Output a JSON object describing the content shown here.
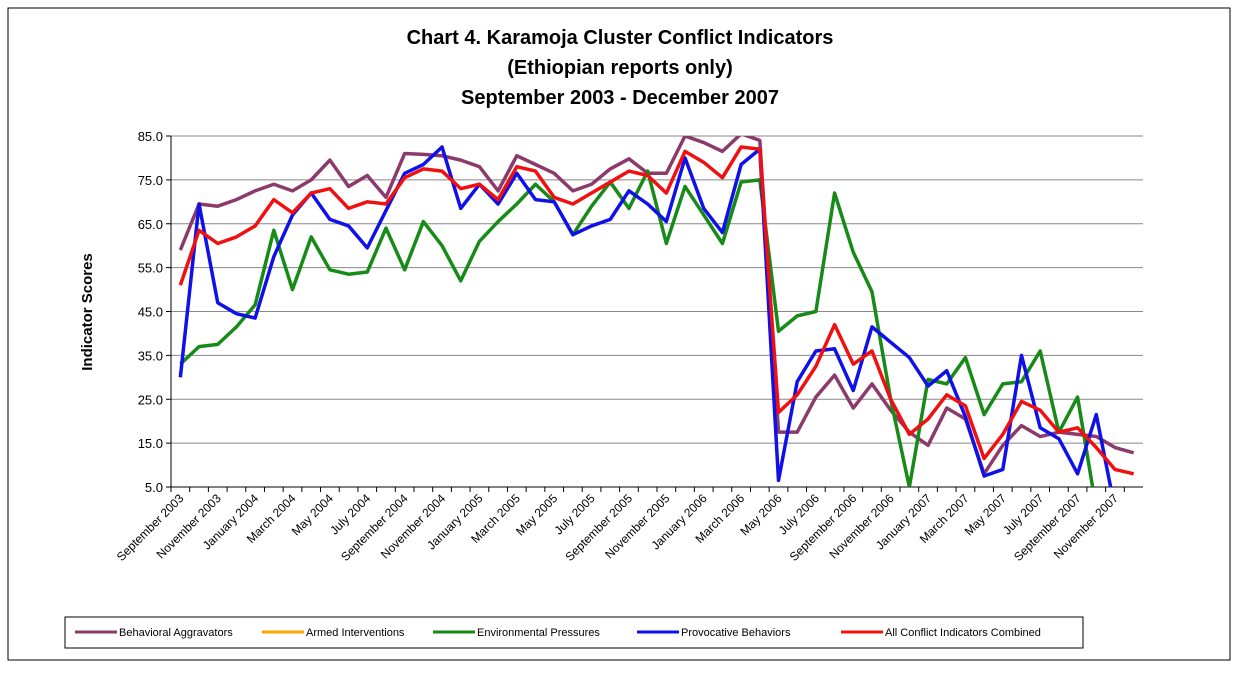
{
  "chart_data": {
    "type": "line",
    "title": [
      "Chart 4. Karamoja Cluster Conflict Indicators",
      "(Ethiopian reports only)",
      "September 2003 - December 2007"
    ],
    "y_label": "Indicator Scores",
    "categories": [
      "September 2003",
      null,
      "November 2003",
      null,
      "January 2004",
      null,
      "March 2004",
      null,
      "May 2004",
      null,
      "July 2004",
      null,
      "September 2004",
      null,
      "November 2004",
      null,
      "January 2005",
      null,
      "March 2005",
      null,
      "May 2005",
      null,
      "July 2005",
      null,
      "September 2005",
      null,
      "November 2005",
      null,
      "January 2006",
      null,
      "March 2006",
      null,
      "May 2006",
      null,
      "July 2006",
      null,
      "September 2006",
      null,
      "November 2006",
      null,
      "January 2007",
      null,
      "March 2007",
      null,
      "May 2007",
      null,
      "July 2007",
      null,
      "September 2007",
      null,
      "November 2007",
      null
    ],
    "ylim": [
      5,
      85
    ],
    "yticks": [
      {
        "value": 5,
        "label": "5.0"
      },
      {
        "value": 15,
        "label": "15.0"
      },
      {
        "value": 25,
        "label": "25.0"
      },
      {
        "value": 35,
        "label": "35.0"
      },
      {
        "value": 45,
        "label": "45.0"
      },
      {
        "value": 55,
        "label": "55.0"
      },
      {
        "value": 65,
        "label": "65.0"
      },
      {
        "value": 75,
        "label": "75.0"
      },
      {
        "value": 85,
        "label": "85.0"
      }
    ],
    "grid": true,
    "legend": "bottom",
    "series": [
      {
        "name": "Behavioral Aggravators",
        "color": "#8b3a6b",
        "values": [
          59,
          69.5,
          69,
          70.5,
          72.5,
          74,
          72.5,
          75,
          79.5,
          73.5,
          76,
          71,
          81,
          80.8,
          80.5,
          79.5,
          78,
          72.5,
          80.5,
          78.5,
          76.5,
          72.5,
          74,
          77.5,
          79.8,
          76.5,
          76.5,
          85,
          83.5,
          81.5,
          85.5,
          84,
          17.5,
          17.5,
          25.5,
          30.5,
          23,
          28.5,
          22.5,
          17.5,
          14.5,
          23,
          20.5,
          8,
          14.5,
          19,
          16.5,
          17.5,
          17,
          16.5,
          14,
          12.8
        ]
      },
      {
        "name": "Armed Interventions",
        "color": "#ffa500",
        "values": [
          0,
          0,
          0,
          0,
          0,
          0,
          0,
          0,
          0,
          0,
          0,
          0,
          0,
          0,
          0,
          0,
          0,
          0,
          0,
          0,
          0,
          0,
          0,
          0,
          0,
          0,
          0,
          0,
          0,
          0,
          0,
          0,
          0,
          0,
          0,
          0,
          0,
          0,
          0,
          0,
          0,
          0,
          0,
          0,
          0,
          0,
          0,
          0,
          0,
          0,
          0,
          0
        ]
      },
      {
        "name": "Environmental Pressures",
        "color": "#178a17",
        "values": [
          33,
          37,
          37.5,
          41.5,
          46.5,
          63.5,
          50,
          62,
          54.5,
          53.5,
          54,
          64,
          54.5,
          65.5,
          60,
          52,
          61,
          65.5,
          69.5,
          74,
          70,
          62.5,
          69,
          74.5,
          68.5,
          77,
          60.5,
          73.5,
          67,
          60.5,
          74.5,
          75,
          40.5,
          44,
          45,
          72,
          58.5,
          49.5,
          25,
          5,
          29.5,
          28.5,
          34.5,
          21.5,
          28.5,
          29,
          36,
          17.5,
          25.5,
          0,
          4,
          3
        ]
      },
      {
        "name": "Provocative Behaviors",
        "color": "#1010e8",
        "values": [
          30,
          69.5,
          47,
          44.5,
          43.5,
          57.5,
          67,
          72,
          66,
          64.5,
          59.5,
          68,
          76.5,
          78.5,
          82.5,
          68.5,
          74,
          69.5,
          76.5,
          70.5,
          70,
          62.5,
          64.5,
          66,
          72.5,
          69.5,
          65.5,
          80,
          68.5,
          63,
          78.5,
          82,
          6.5,
          29,
          36,
          36.5,
          27,
          41.5,
          38,
          34.5,
          28,
          31.5,
          21,
          7.5,
          9,
          35,
          18.5,
          16,
          8,
          21.5,
          0,
          0
        ]
      },
      {
        "name": "All Conflict Indicators Combined",
        "color": "#f01010",
        "values": [
          51,
          63.5,
          60.5,
          62,
          64.5,
          70.5,
          67.5,
          72,
          73,
          68.5,
          70,
          69.5,
          75.5,
          77.5,
          77,
          73,
          74,
          70.5,
          78,
          77,
          71,
          69.5,
          72,
          74.5,
          77,
          76,
          72,
          81.5,
          79,
          75.5,
          82.5,
          82,
          22,
          26,
          32.5,
          42,
          33,
          36,
          25,
          17,
          20.5,
          26,
          23.5,
          11.5,
          17,
          24.5,
          22.5,
          17.5,
          18.5,
          14,
          9,
          8
        ]
      }
    ]
  }
}
